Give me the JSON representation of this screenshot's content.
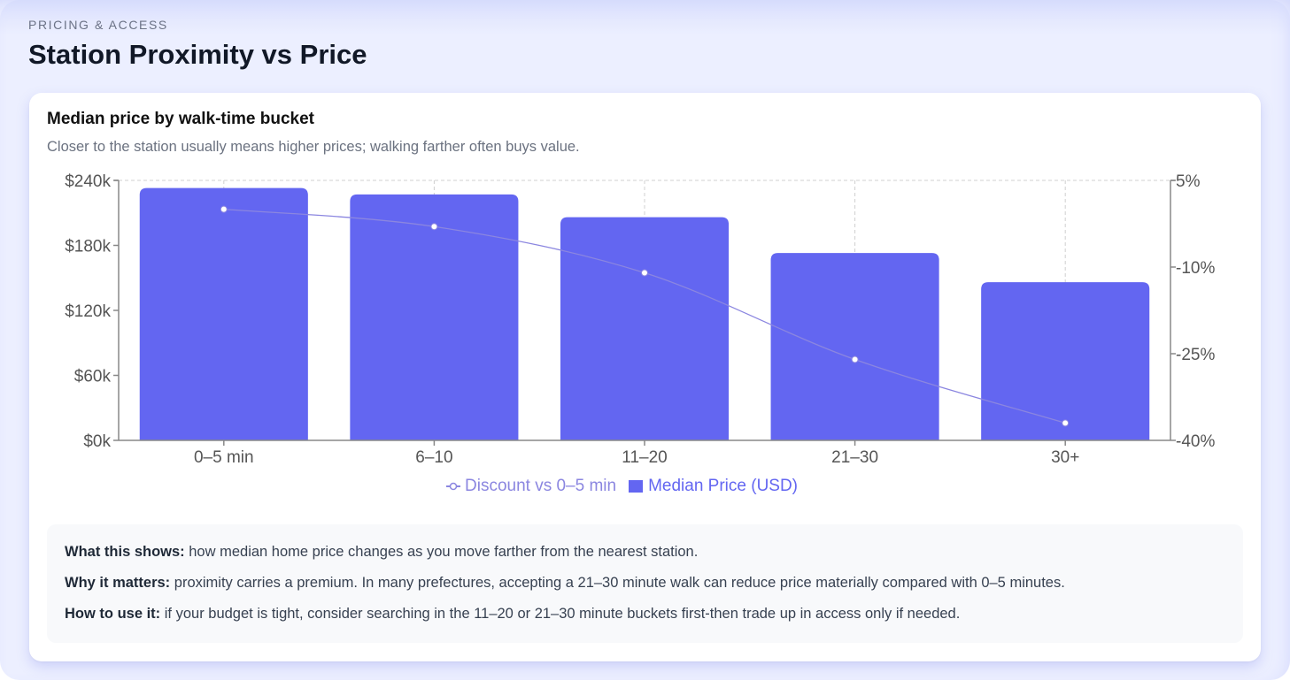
{
  "header": {
    "eyebrow": "PRICING & ACCESS",
    "title": "Station Proximity vs Price"
  },
  "card": {
    "title": "Median price by walk-time bucket",
    "subtitle": "Closer to the station usually means higher prices; walking farther often buys value."
  },
  "legend": {
    "line_label": "Discount vs 0–5 min",
    "bar_label": "Median Price (USD)"
  },
  "colors": {
    "bar": "#6366f1",
    "line": "#8b86e0",
    "grid": "#d0d0d0",
    "axis": "#888888"
  },
  "notes": [
    {
      "label": "What this shows:",
      "text": " how median home price changes as you move farther from the nearest station."
    },
    {
      "label": "Why it matters:",
      "text": " proximity carries a premium. In many prefectures, accepting a 21–30 minute walk can reduce price materially compared with 0–5 minutes."
    },
    {
      "label": "How to use it:",
      "text": " if your budget is tight, consider searching in the 11–20 or 21–30 minute buckets first-then trade up in access only if needed."
    }
  ],
  "chart_data": {
    "type": "bar",
    "title": "Median price by walk-time bucket",
    "subtitle": "Closer to the station usually means higher prices; walking farther often buys value.",
    "categories": [
      "0–5 min",
      "6–10",
      "11–20",
      "21–30",
      "30+"
    ],
    "series": [
      {
        "name": "Median Price (USD)",
        "type": "bar",
        "axis": "left",
        "values": [
          233000,
          227000,
          206000,
          173000,
          146000
        ]
      },
      {
        "name": "Discount vs 0–5 min",
        "type": "line",
        "axis": "right",
        "values": [
          0,
          -3,
          -11,
          -26,
          -37
        ]
      }
    ],
    "left_axis": {
      "ticks": [
        "$0k",
        "$60k",
        "$120k",
        "$180k",
        "$240k"
      ],
      "ylim": [
        0,
        240000
      ]
    },
    "right_axis": {
      "ticks": [
        "-40%",
        "-25%",
        "-10%",
        "5%"
      ],
      "ylim": [
        -40,
        5
      ]
    },
    "xlabel": "",
    "ylabel": "",
    "grid": "dashed vertical at category centers, dashed top line",
    "legend_position": "bottom-center"
  }
}
